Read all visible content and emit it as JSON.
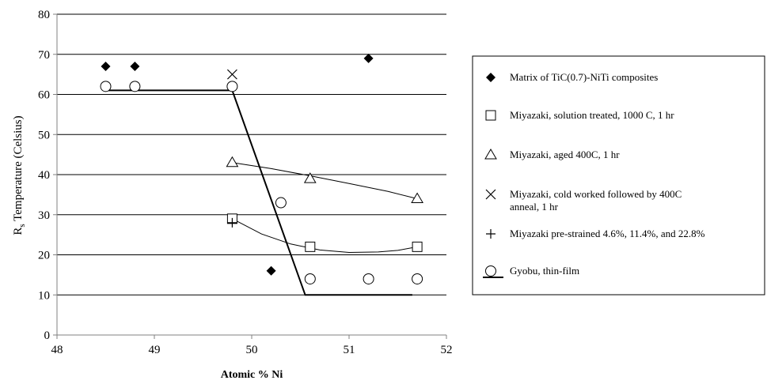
{
  "chart_data": {
    "type": "scatter",
    "xlabel": "Atomic % Ni",
    "ylabel_main": "R",
    "ylabel_sub": "s",
    "ylabel_rest": " Temperature (Celsius)",
    "xlim": [
      48,
      52
    ],
    "ylim": [
      0,
      80
    ],
    "x_ticks": [
      "48",
      "49",
      "50",
      "51",
      "52"
    ],
    "y_ticks": [
      "0",
      "10",
      "20",
      "30",
      "40",
      "50",
      "60",
      "70",
      "80"
    ],
    "grid": "horizontal",
    "legend_position": "right",
    "series": [
      {
        "name": "Matrix of TiC(0.7)-NiTi composites",
        "marker": "diamond-filled",
        "points": [
          [
            48.5,
            67
          ],
          [
            48.8,
            67
          ],
          [
            50.2,
            16
          ],
          [
            51.2,
            69
          ]
        ]
      },
      {
        "name": "Miyazaki, solution treated, 1000 C, 1 hr",
        "marker": "square",
        "points": [
          [
            49.8,
            29
          ],
          [
            50.6,
            22
          ],
          [
            51.7,
            22
          ]
        ],
        "trend": [
          [
            49.8,
            29
          ],
          [
            50.1,
            25.2
          ],
          [
            50.4,
            22.7
          ],
          [
            50.7,
            21.2
          ],
          [
            51.0,
            20.6
          ],
          [
            51.3,
            20.7
          ],
          [
            51.5,
            21.1
          ],
          [
            51.7,
            22
          ]
        ]
      },
      {
        "name": "Miyazaki, aged 400C, 1 hr",
        "marker": "triangle",
        "points": [
          [
            49.8,
            43
          ],
          [
            50.6,
            39
          ],
          [
            51.7,
            34
          ]
        ],
        "trend": [
          [
            49.8,
            43
          ],
          [
            50.2,
            41.5
          ],
          [
            50.6,
            39.7
          ],
          [
            51.0,
            37.8
          ],
          [
            51.4,
            35.8
          ],
          [
            51.7,
            34
          ]
        ]
      },
      {
        "name": "Miyazaki, cold worked followed by 400C",
        "name_line2": "anneal, 1 hr",
        "marker": "x",
        "points": [
          [
            49.8,
            65
          ]
        ]
      },
      {
        "name": "Miyazaki pre-strained 4.6%, 11.4%, and 22.8%",
        "marker": "plus",
        "points": [
          [
            49.8,
            28
          ]
        ]
      },
      {
        "name": "Gyobu, thin-film",
        "marker": "circle",
        "points": [
          [
            48.5,
            62
          ],
          [
            48.8,
            62
          ],
          [
            49.8,
            62
          ],
          [
            50.3,
            33
          ],
          [
            50.6,
            14
          ],
          [
            51.2,
            14
          ],
          [
            51.7,
            14
          ]
        ],
        "line": [
          [
            48.5,
            61
          ],
          [
            49.8,
            61
          ],
          [
            50.55,
            10
          ],
          [
            51.65,
            10
          ]
        ]
      }
    ]
  }
}
